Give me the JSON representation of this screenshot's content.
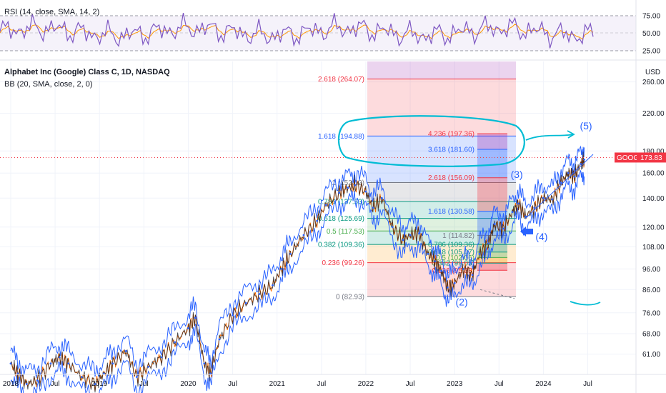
{
  "rsi": {
    "label": "RSI (14, close, SMA, 14, 2)",
    "ticks": [
      {
        "v": 75,
        "label": "75.00"
      },
      {
        "v": 50,
        "label": "50.00"
      },
      {
        "v": 25,
        "label": "25.00"
      }
    ]
  },
  "chart_data": {
    "type": "line",
    "title": "Alphabet Inc (Google) Class C, 1D, NASDAQ",
    "subtitle": "BB (20, SMA, close, 2, 0)",
    "currency": "USD",
    "symbol": "GOOG",
    "last_price": "173.83",
    "last_price_value": 173.83,
    "scale": "log",
    "ylim": [
      56,
      290
    ],
    "xlim": [
      2018.0,
      2024.85
    ],
    "y_ticks": [
      {
        "v": 260,
        "label": "260.00"
      },
      {
        "v": 220,
        "label": "220.00"
      },
      {
        "v": 180,
        "label": "180.00"
      },
      {
        "v": 160,
        "label": "160.00"
      },
      {
        "v": 140,
        "label": "140.00"
      },
      {
        "v": 120,
        "label": "120.00"
      },
      {
        "v": 108,
        "label": "108.00"
      },
      {
        "v": 96,
        "label": "96.00"
      },
      {
        "v": 86,
        "label": "86.00"
      },
      {
        "v": 76,
        "label": "76.00"
      },
      {
        "v": 68,
        "label": "68.00"
      },
      {
        "v": 61,
        "label": "61.00"
      }
    ],
    "x_ticks": [
      {
        "v": 2018.0,
        "label": "2018"
      },
      {
        "v": 2018.5,
        "label": "Jul"
      },
      {
        "v": 2019.0,
        "label": "2019"
      },
      {
        "v": 2019.5,
        "label": "Jul"
      },
      {
        "v": 2020.0,
        "label": "2020"
      },
      {
        "v": 2020.5,
        "label": "Jul"
      },
      {
        "v": 2021.0,
        "label": "2021"
      },
      {
        "v": 2021.5,
        "label": "Jul"
      },
      {
        "v": 2022.0,
        "label": "2022"
      },
      {
        "v": 2022.5,
        "label": "Jul"
      },
      {
        "v": 2023.0,
        "label": "2023"
      },
      {
        "v": 2023.5,
        "label": "Jul"
      },
      {
        "v": 2024.0,
        "label": "2024"
      },
      {
        "v": 2024.5,
        "label": "Jul"
      }
    ],
    "series": [
      {
        "color": "#2962ff",
        "points": [
          [
            2018.0,
            58
          ],
          [
            2018.08,
            55
          ],
          [
            2018.18,
            52
          ],
          [
            2018.3,
            53
          ],
          [
            2018.45,
            58
          ],
          [
            2018.55,
            60
          ],
          [
            2018.65,
            58
          ],
          [
            2018.8,
            54
          ],
          [
            2018.95,
            52
          ],
          [
            2019.05,
            55
          ],
          [
            2019.15,
            58
          ],
          [
            2019.3,
            62
          ],
          [
            2019.42,
            54
          ],
          [
            2019.55,
            57
          ],
          [
            2019.7,
            60
          ],
          [
            2019.85,
            65
          ],
          [
            2020.0,
            70
          ],
          [
            2020.08,
            74
          ],
          [
            2020.18,
            58
          ],
          [
            2020.25,
            55
          ],
          [
            2020.35,
            66
          ],
          [
            2020.5,
            75
          ],
          [
            2020.65,
            80
          ],
          [
            2020.8,
            84
          ],
          [
            2020.95,
            88
          ],
          [
            2021.05,
            96
          ],
          [
            2021.15,
            104
          ],
          [
            2021.3,
            115
          ],
          [
            2021.45,
            124
          ],
          [
            2021.55,
            135
          ],
          [
            2021.7,
            144
          ],
          [
            2021.8,
            148
          ],
          [
            2021.88,
            150
          ],
          [
            2022.0,
            145
          ],
          [
            2022.08,
            133
          ],
          [
            2022.18,
            140
          ],
          [
            2022.3,
            120
          ],
          [
            2022.42,
            112
          ],
          [
            2022.5,
            115
          ],
          [
            2022.6,
            116
          ],
          [
            2022.7,
            104
          ],
          [
            2022.78,
            100
          ],
          [
            2022.85,
            95
          ],
          [
            2022.92,
            87
          ],
          [
            2023.0,
            89
          ],
          [
            2023.1,
            96
          ],
          [
            2023.2,
            93
          ],
          [
            2023.28,
            104
          ],
          [
            2023.38,
            110
          ],
          [
            2023.45,
            122
          ],
          [
            2023.55,
            119
          ],
          [
            2023.65,
            130
          ],
          [
            2023.72,
            136
          ],
          [
            2023.8,
            127
          ],
          [
            2023.9,
            133
          ],
          [
            2024.0,
            140
          ],
          [
            2024.1,
            139
          ],
          [
            2024.2,
            152
          ],
          [
            2024.28,
            160
          ],
          [
            2024.35,
            157
          ],
          [
            2024.42,
            168
          ],
          [
            2024.46,
            172
          ]
        ]
      }
    ],
    "annotations": {
      "waves": [
        {
          "label": "(2)",
          "x": 2023.08,
          "y": 79
        },
        {
          "label": "(3)",
          "x": 2023.7,
          "y": 156
        },
        {
          "label": "(4)",
          "x": 2023.98,
          "y": 112
        },
        {
          "label": "(5)",
          "x": 2024.48,
          "y": 202
        }
      ],
      "fib_main": [
        {
          "label": "2.618 (264.07)",
          "v": 264.07,
          "color": "#f23645"
        },
        {
          "label": "1.618 (194.88)",
          "v": 194.88,
          "color": "#2962ff"
        },
        {
          "label": "1 (152.12)",
          "v": 152.12,
          "color": "#787b86"
        },
        {
          "label": "0.786 (137.53)",
          "v": 137.53,
          "color": "#089981"
        },
        {
          "label": "0.618 (125.69)",
          "v": 125.69,
          "color": "#089981"
        },
        {
          "label": "0.5 (117.53)",
          "v": 117.53,
          "color": "#4caf50"
        },
        {
          "label": "0.382 (109.36)",
          "v": 109.36,
          "color": "#089981"
        },
        {
          "label": "0.236 (99.26)",
          "v": 99.26,
          "color": "#f23645"
        },
        {
          "label": "0 (82.93)",
          "v": 82.93,
          "color": "#787b86"
        }
      ],
      "fib_ext": [
        {
          "label": "4.236 (197.36)",
          "v": 197.36,
          "color": "#f23645"
        },
        {
          "label": "3.618 (181.60)",
          "v": 181.6,
          "color": "#2962ff"
        },
        {
          "label": "2.618 (156.09)",
          "v": 156.09,
          "color": "#f23645"
        },
        {
          "label": "1.618 (130.58)",
          "v": 130.58,
          "color": "#2962ff"
        },
        {
          "label": "1 (114.82)",
          "v": 114.82,
          "color": "#787b86"
        },
        {
          "label": "0.786 (109.36)",
          "v": 109.36,
          "color": "#089981"
        },
        {
          "label": "0.618 (105.07)",
          "v": 105.07,
          "color": "#089981"
        },
        {
          "label": "0.5 (102.06)",
          "v": 102.06,
          "color": "#4caf50"
        },
        {
          "label": "0.382 (99.05)",
          "v": 99.05,
          "color": "#089981"
        },
        {
          "label": "0.236 (95.33)",
          "v": 95.33,
          "color": "#f23645"
        }
      ]
    }
  },
  "colors": {
    "price": "#2962ff",
    "rsi": "#7e57c2",
    "rsi_ma": "#ff9800",
    "drawing": "#00bcd4",
    "wave_label": "#2962ff",
    "price_tag": "#f23645"
  }
}
